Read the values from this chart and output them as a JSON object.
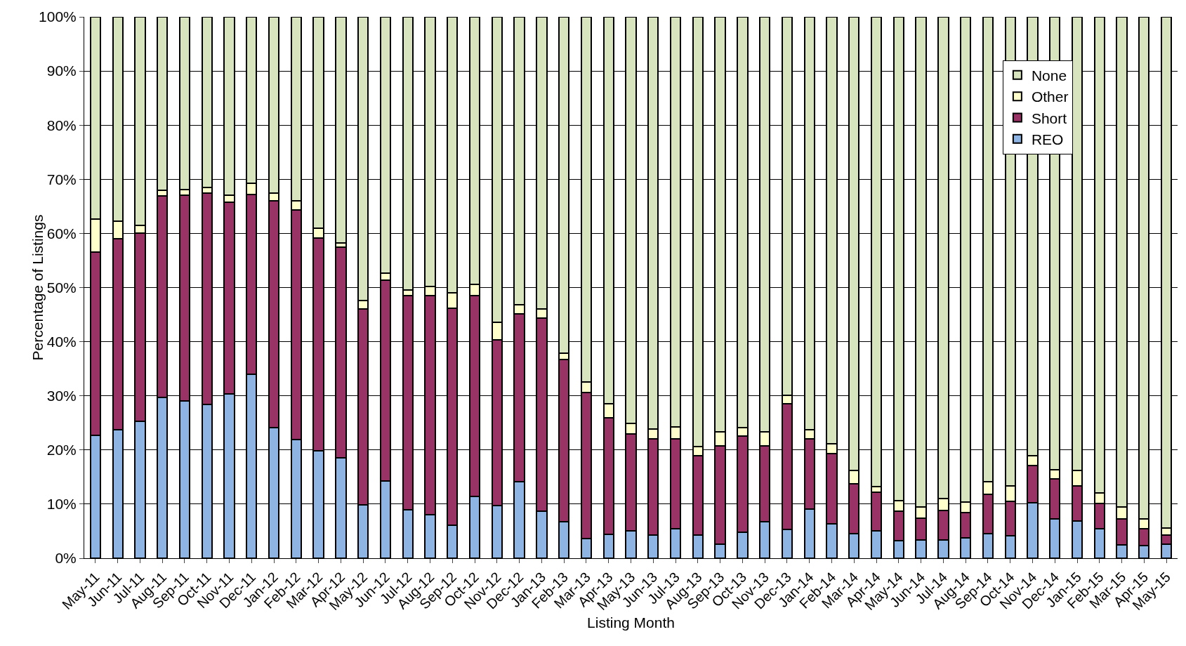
{
  "chart_data": {
    "type": "bar",
    "stacked": true,
    "xlabel": "Listing Month",
    "ylabel": "Percentage of Listings",
    "categories": [
      "May-11",
      "Jun-11",
      "Jul-11",
      "Aug-11",
      "Sep-11",
      "Oct-11",
      "Nov-11",
      "Dec-11",
      "Jan-12",
      "Feb-12",
      "Mar-12",
      "Apr-12",
      "May-12",
      "Jun-12",
      "Jul-12",
      "Aug-12",
      "Sep-12",
      "Oct-12",
      "Nov-12",
      "Dec-12",
      "Jan-13",
      "Feb-13",
      "Mar-13",
      "Apr-13",
      "May-13",
      "Jun-13",
      "Jul-13",
      "Aug-13",
      "Sep-13",
      "Oct-13",
      "Nov-13",
      "Dec-13",
      "Jan-14",
      "Feb-14",
      "Mar-14",
      "Apr-14",
      "May-14",
      "Jun-14",
      "Jul-14",
      "Aug-14",
      "Sep-14",
      "Oct-14",
      "Nov-14",
      "Dec-14",
      "Jan-15",
      "Feb-15",
      "Mar-15",
      "Apr-15",
      "May-15"
    ],
    "series": [
      {
        "name": "REO",
        "color": "#8eb4e3",
        "values": [
          22.7,
          23.7,
          25.3,
          29.7,
          29,
          28.4,
          30.3,
          34,
          24.1,
          21.9,
          19.8,
          18.5,
          9.9,
          14.3,
          8.9,
          8.1,
          6.1,
          11.4,
          9.7,
          14.1,
          8.7,
          6.7,
          3.6,
          4.4,
          5,
          4.3,
          5.4,
          4.3,
          2.6,
          4.8,
          6.7,
          5.3,
          9.1,
          6.3,
          4.6,
          5,
          3.2,
          3.4,
          3.4,
          3.8,
          4.6,
          4.2,
          10.2,
          7.3,
          6.9,
          5.4,
          2.5,
          2.3,
          2.6
        ]
      },
      {
        "name": "Short",
        "color": "#993366",
        "values": [
          33.8,
          35.3,
          34.7,
          37.2,
          38,
          39.1,
          35.5,
          33.2,
          41.9,
          42.4,
          39.4,
          39,
          36.1,
          37.1,
          39.6,
          40.4,
          40.1,
          37.1,
          30.6,
          31,
          35.7,
          30,
          27,
          21.6,
          17.9,
          17.8,
          16.7,
          14.6,
          18.1,
          17.8,
          14.1,
          23.2,
          13,
          13,
          9.2,
          7.2,
          5.5,
          4,
          5.4,
          4.6,
          7.2,
          6.3,
          6.9,
          7.3,
          6.5,
          4.7,
          4.8,
          3.2,
          1.7
        ]
      },
      {
        "name": "Other",
        "color": "#ffffcc",
        "values": [
          6.2,
          3.3,
          1.5,
          1,
          1.1,
          1,
          1.2,
          2.1,
          1.4,
          1.7,
          1.8,
          0.8,
          1.6,
          1.2,
          1.1,
          1.7,
          2.8,
          2.1,
          3.3,
          1.7,
          1.7,
          1.2,
          2,
          2.5,
          2,
          1.8,
          2.1,
          1.7,
          2.6,
          1.5,
          2.5,
          1.6,
          1.7,
          1.8,
          2.4,
          1,
          1.9,
          2.1,
          2.2,
          2,
          2.3,
          2.8,
          1.8,
          1.8,
          2.8,
          2,
          2.2,
          1.8,
          1.3
        ]
      },
      {
        "name": "None",
        "color": "#d7e4bd",
        "values": [
          37.3,
          37.7,
          38.5,
          32.1,
          31.9,
          31.5,
          33,
          30.7,
          32.6,
          34,
          39,
          41.7,
          52.4,
          47.4,
          50.4,
          49.8,
          51,
          49.4,
          56.4,
          53.2,
          53.9,
          62.1,
          67.4,
          71.5,
          75.1,
          76.1,
          75.8,
          79.4,
          76.7,
          75.9,
          76.7,
          69.9,
          76.2,
          78.9,
          83.8,
          86.8,
          89.4,
          90.5,
          89,
          89.6,
          85.9,
          86.7,
          81.1,
          83.6,
          83.8,
          87.9,
          90.5,
          92.7,
          94.4
        ]
      }
    ],
    "ylim": [
      0,
      100
    ],
    "yticks": [
      {
        "value": 0,
        "label": "0%"
      },
      {
        "value": 10,
        "label": "10%"
      },
      {
        "value": 20,
        "label": "20%"
      },
      {
        "value": 30,
        "label": "30%"
      },
      {
        "value": 40,
        "label": "40%"
      },
      {
        "value": 50,
        "label": "50%"
      },
      {
        "value": 60,
        "label": "60%"
      },
      {
        "value": 70,
        "label": "70%"
      },
      {
        "value": 80,
        "label": "80%"
      },
      {
        "value": 90,
        "label": "90%"
      },
      {
        "value": 100,
        "label": "100%"
      }
    ],
    "grid": "y",
    "legend": "top right"
  }
}
